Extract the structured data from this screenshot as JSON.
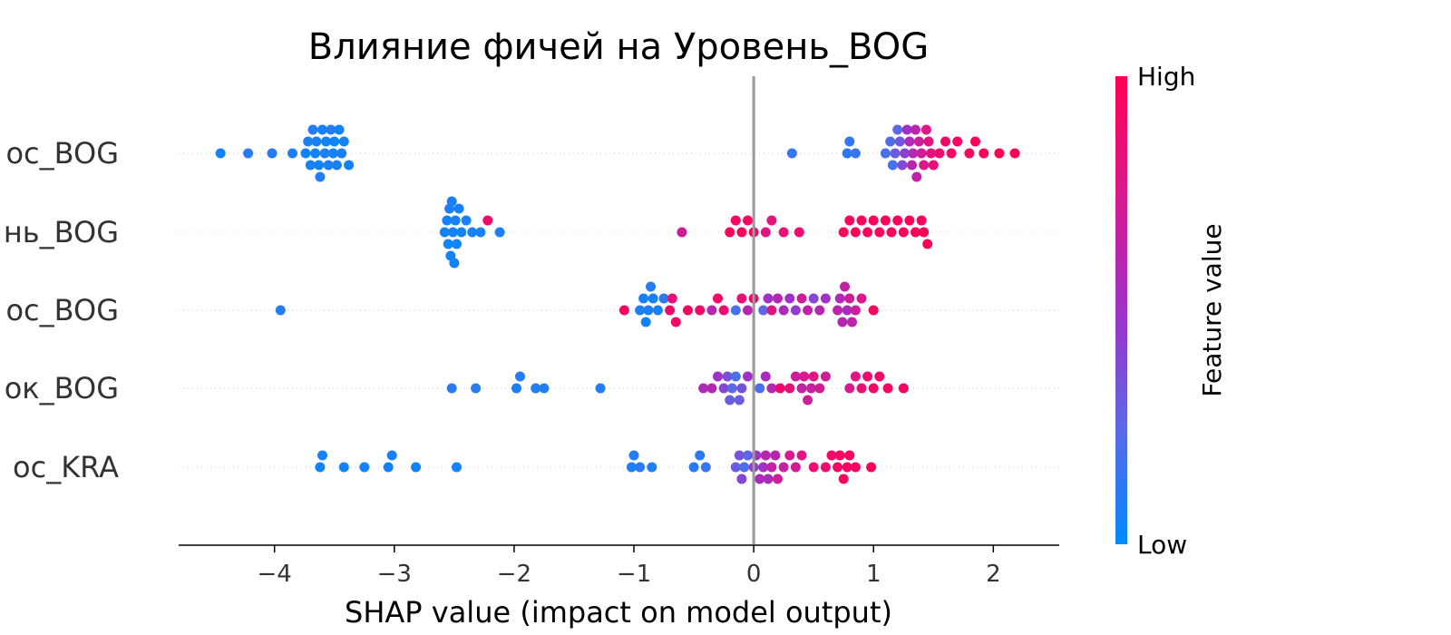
{
  "chart_data": {
    "type": "scatter",
    "subtype": "shap-beeswarm",
    "title": "Влияние фичей на Уровень_BOG",
    "xlabel": "SHAP value (impact on model output)",
    "xlim": [
      -4.8,
      2.55
    ],
    "xticks": [
      {
        "value": -4,
        "label": "−4"
      },
      {
        "value": -3,
        "label": "−3"
      },
      {
        "value": -2,
        "label": "−2"
      },
      {
        "value": -1,
        "label": "−1"
      },
      {
        "value": 0,
        "label": "0"
      },
      {
        "value": 1,
        "label": "1"
      },
      {
        "value": 2,
        "label": "2"
      }
    ],
    "features": [
      {
        "label": "ос_BOG",
        "points": [
          [
            -4.45,
            0.05
          ],
          [
            -4.22,
            0.12
          ],
          [
            -4.02,
            0.1
          ],
          [
            -3.85,
            0.08
          ],
          [
            -3.74,
            0.05
          ],
          [
            -3.72,
            0.08
          ],
          [
            -3.7,
            0.06
          ],
          [
            -3.68,
            0.1
          ],
          [
            -3.66,
            0.04
          ],
          [
            -3.65,
            0.07
          ],
          [
            -3.63,
            0.05
          ],
          [
            -3.62,
            0.09
          ],
          [
            -3.6,
            0.06
          ],
          [
            -3.58,
            0.08
          ],
          [
            -3.57,
            0.05
          ],
          [
            -3.55,
            0.07
          ],
          [
            -3.53,
            0.1
          ],
          [
            -3.51,
            0.06
          ],
          [
            -3.5,
            0.04
          ],
          [
            -3.48,
            0.08
          ],
          [
            -3.46,
            0.05
          ],
          [
            -3.44,
            0.07
          ],
          [
            -3.42,
            0.06
          ],
          [
            -3.38,
            0.05
          ],
          [
            0.32,
            0.15
          ],
          [
            0.78,
            0.12
          ],
          [
            0.8,
            0.14
          ],
          [
            0.85,
            0.15
          ],
          [
            1.1,
            0.2
          ],
          [
            1.14,
            0.22
          ],
          [
            1.16,
            0.18
          ],
          [
            1.18,
            0.3
          ],
          [
            1.2,
            0.25
          ],
          [
            1.22,
            0.32
          ],
          [
            1.24,
            0.38
          ],
          [
            1.26,
            0.42
          ],
          [
            1.28,
            0.5
          ],
          [
            1.3,
            0.55
          ],
          [
            1.32,
            0.6
          ],
          [
            1.33,
            0.58
          ],
          [
            1.35,
            0.62
          ],
          [
            1.36,
            0.65
          ],
          [
            1.38,
            0.7
          ],
          [
            1.4,
            0.72
          ],
          [
            1.42,
            0.75
          ],
          [
            1.44,
            0.78
          ],
          [
            1.46,
            0.8
          ],
          [
            1.48,
            0.82
          ],
          [
            1.5,
            0.85
          ],
          [
            1.55,
            0.88
          ],
          [
            1.6,
            0.9
          ],
          [
            1.65,
            0.92
          ],
          [
            1.7,
            0.93
          ],
          [
            1.8,
            0.95
          ],
          [
            1.85,
            0.96
          ],
          [
            1.92,
            0.97
          ],
          [
            2.05,
            0.98
          ],
          [
            2.18,
            0.99
          ]
        ]
      },
      {
        "label": "нь_BOG",
        "points": [
          [
            -2.58,
            0.05
          ],
          [
            -2.56,
            0.06
          ],
          [
            -2.55,
            0.04
          ],
          [
            -2.54,
            0.08
          ],
          [
            -2.53,
            0.05
          ],
          [
            -2.52,
            0.07
          ],
          [
            -2.51,
            0.06
          ],
          [
            -2.5,
            0.05
          ],
          [
            -2.49,
            0.07
          ],
          [
            -2.48,
            0.04
          ],
          [
            -2.46,
            0.06
          ],
          [
            -2.44,
            0.05
          ],
          [
            -2.4,
            0.07
          ],
          [
            -2.35,
            0.06
          ],
          [
            -2.28,
            0.08
          ],
          [
            -2.22,
            0.9
          ],
          [
            -2.12,
            0.08
          ],
          [
            -0.6,
            0.7
          ],
          [
            -0.2,
            0.95
          ],
          [
            -0.15,
            0.93
          ],
          [
            -0.1,
            0.96
          ],
          [
            -0.05,
            0.94
          ],
          [
            0.0,
            0.95
          ],
          [
            0.1,
            0.8
          ],
          [
            0.15,
            0.82
          ],
          [
            0.25,
            0.85
          ],
          [
            0.38,
            0.88
          ],
          [
            0.75,
            0.95
          ],
          [
            0.8,
            0.96
          ],
          [
            0.85,
            0.97
          ],
          [
            0.9,
            0.96
          ],
          [
            0.95,
            0.95
          ],
          [
            1.0,
            0.97
          ],
          [
            1.05,
            0.96
          ],
          [
            1.1,
            0.98
          ],
          [
            1.15,
            0.97
          ],
          [
            1.2,
            0.96
          ],
          [
            1.25,
            0.97
          ],
          [
            1.3,
            0.98
          ],
          [
            1.35,
            0.97
          ],
          [
            1.4,
            0.96
          ],
          [
            1.42,
            0.98
          ],
          [
            1.45,
            0.97
          ]
        ]
      },
      {
        "label": "ос_BOG",
        "points": [
          [
            -3.95,
            0.1
          ],
          [
            -1.08,
            0.95
          ],
          [
            -0.95,
            0.08
          ],
          [
            -0.92,
            0.06
          ],
          [
            -0.9,
            0.05
          ],
          [
            -0.88,
            0.07
          ],
          [
            -0.86,
            0.1
          ],
          [
            -0.84,
            0.06
          ],
          [
            -0.8,
            0.08
          ],
          [
            -0.75,
            0.12
          ],
          [
            -0.7,
            0.9
          ],
          [
            -0.68,
            0.85
          ],
          [
            -0.65,
            0.92
          ],
          [
            -0.55,
            0.93
          ],
          [
            -0.45,
            0.9
          ],
          [
            -0.35,
            0.6
          ],
          [
            -0.3,
            0.92
          ],
          [
            -0.25,
            0.88
          ],
          [
            -0.15,
            0.2
          ],
          [
            -0.1,
            0.85
          ],
          [
            -0.05,
            0.6
          ],
          [
            0.0,
            0.9
          ],
          [
            0.08,
            0.25
          ],
          [
            0.12,
            0.5
          ],
          [
            0.15,
            0.8
          ],
          [
            0.2,
            0.6
          ],
          [
            0.25,
            0.55
          ],
          [
            0.3,
            0.5
          ],
          [
            0.35,
            0.45
          ],
          [
            0.4,
            0.7
          ],
          [
            0.45,
            0.65
          ],
          [
            0.5,
            0.4
          ],
          [
            0.55,
            0.6
          ],
          [
            0.6,
            0.5
          ],
          [
            0.7,
            0.62
          ],
          [
            0.72,
            0.58
          ],
          [
            0.74,
            0.6
          ],
          [
            0.76,
            0.65
          ],
          [
            0.78,
            0.55
          ],
          [
            0.8,
            0.7
          ],
          [
            0.82,
            0.62
          ],
          [
            0.85,
            0.68
          ],
          [
            0.9,
            0.75
          ],
          [
            1.0,
            0.95
          ]
        ]
      },
      {
        "label": "ок_BOG",
        "points": [
          [
            -2.52,
            0.1
          ],
          [
            -2.32,
            0.1
          ],
          [
            -1.98,
            0.08
          ],
          [
            -1.95,
            0.1
          ],
          [
            -1.82,
            0.09
          ],
          [
            -1.75,
            0.1
          ],
          [
            -1.28,
            0.08
          ],
          [
            -0.42,
            0.55
          ],
          [
            -0.35,
            0.6
          ],
          [
            -0.3,
            0.5
          ],
          [
            -0.25,
            0.4
          ],
          [
            -0.22,
            0.35
          ],
          [
            -0.2,
            0.3
          ],
          [
            -0.18,
            0.25
          ],
          [
            -0.15,
            0.2
          ],
          [
            -0.12,
            0.3
          ],
          [
            -0.1,
            0.35
          ],
          [
            -0.05,
            0.5
          ],
          [
            0.05,
            0.2
          ],
          [
            0.1,
            0.55
          ],
          [
            0.15,
            0.6
          ],
          [
            0.22,
            0.9
          ],
          [
            0.3,
            0.85
          ],
          [
            0.35,
            0.7
          ],
          [
            0.4,
            0.65
          ],
          [
            0.42,
            0.75
          ],
          [
            0.45,
            0.7
          ],
          [
            0.48,
            0.68
          ],
          [
            0.5,
            0.8
          ],
          [
            0.55,
            0.72
          ],
          [
            0.6,
            0.7
          ],
          [
            0.8,
            0.75
          ],
          [
            0.85,
            0.8
          ],
          [
            0.9,
            0.85
          ],
          [
            0.95,
            0.88
          ],
          [
            1.0,
            0.9
          ],
          [
            1.05,
            0.92
          ],
          [
            1.12,
            0.93
          ],
          [
            1.25,
            0.95
          ]
        ]
      },
      {
        "label": "ос_KRA",
        "points": [
          [
            -3.62,
            0.05
          ],
          [
            -3.6,
            0.06
          ],
          [
            -3.42,
            0.05
          ],
          [
            -3.25,
            0.06
          ],
          [
            -3.05,
            0.05
          ],
          [
            -3.02,
            0.06
          ],
          [
            -2.82,
            0.05
          ],
          [
            -2.48,
            0.06
          ],
          [
            -1.02,
            0.08
          ],
          [
            -1.0,
            0.1
          ],
          [
            -0.95,
            0.12
          ],
          [
            -0.85,
            0.09
          ],
          [
            -0.5,
            0.1
          ],
          [
            -0.45,
            0.12
          ],
          [
            -0.4,
            0.15
          ],
          [
            -0.15,
            0.3
          ],
          [
            -0.12,
            0.35
          ],
          [
            -0.1,
            0.4
          ],
          [
            -0.08,
            0.2
          ],
          [
            -0.05,
            0.25
          ],
          [
            0.0,
            0.45
          ],
          [
            0.02,
            0.5
          ],
          [
            0.05,
            0.55
          ],
          [
            0.08,
            0.5
          ],
          [
            0.1,
            0.6
          ],
          [
            0.12,
            0.55
          ],
          [
            0.15,
            0.65
          ],
          [
            0.18,
            0.6
          ],
          [
            0.2,
            0.7
          ],
          [
            0.25,
            0.65
          ],
          [
            0.3,
            0.75
          ],
          [
            0.35,
            0.72
          ],
          [
            0.4,
            0.8
          ],
          [
            0.5,
            0.85
          ],
          [
            0.6,
            0.88
          ],
          [
            0.65,
            0.9
          ],
          [
            0.7,
            0.92
          ],
          [
            0.72,
            0.94
          ],
          [
            0.75,
            0.95
          ],
          [
            0.78,
            0.93
          ],
          [
            0.8,
            0.96
          ],
          [
            0.85,
            0.94
          ],
          [
            0.98,
            0.97
          ]
        ]
      }
    ],
    "colorbar": {
      "label": "Feature value",
      "high": "High",
      "low": "Low",
      "colors": [
        "#008afb",
        "#5c68e6",
        "#a030c8",
        "#d81a8e",
        "#ff0052"
      ]
    },
    "grid": false,
    "zero_line": true
  }
}
